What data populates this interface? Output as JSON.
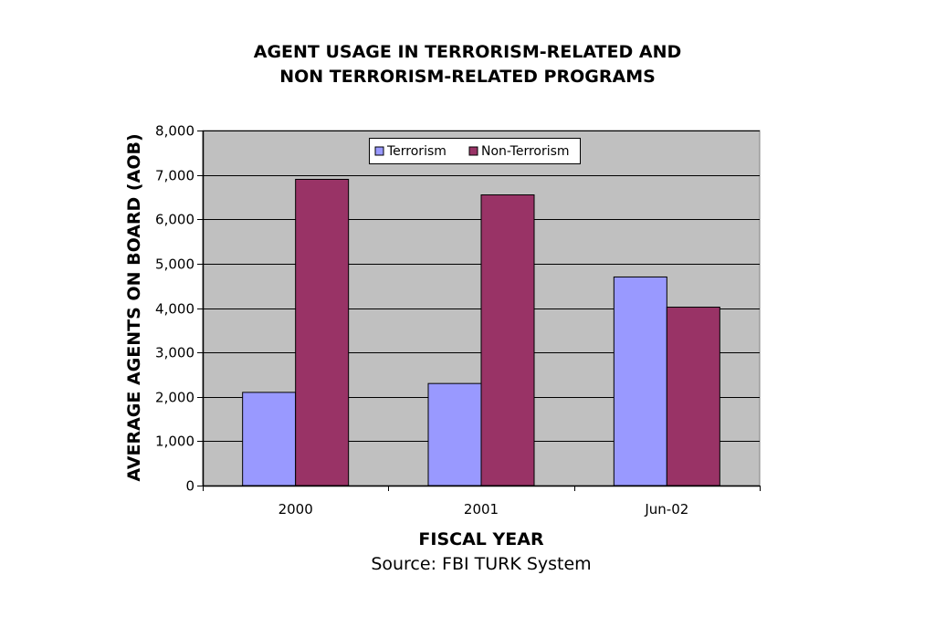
{
  "chart_data": {
    "type": "bar",
    "title_lines": [
      "AGENT USAGE IN TERRORISM-RELATED AND",
      "NON TERRORISM-RELATED PROGRAMS"
    ],
    "xlabel": "FISCAL YEAR",
    "ylabel": "AVERAGE AGENTS ON BOARD (AOB)",
    "source": "Source:  FBI TURK System",
    "categories": [
      "2000",
      "2001",
      "Jun-02"
    ],
    "series": [
      {
        "name": "Terrorism",
        "color": "#9999ff",
        "values": [
          2100,
          2300,
          4700
        ]
      },
      {
        "name": "Non-Terrorism",
        "color": "#993366",
        "values": [
          6900,
          6550,
          4020
        ]
      }
    ],
    "ylim": [
      0,
      8000
    ],
    "yticks": [
      0,
      1000,
      2000,
      3000,
      4000,
      5000,
      6000,
      7000,
      8000
    ],
    "ytick_labels": [
      "0",
      "1,000",
      "2,000",
      "3,000",
      "4,000",
      "5,000",
      "6,000",
      "7,000",
      "8,000"
    ],
    "grid": true,
    "legend_position": "top-center",
    "plot_background": "#c0c0c0"
  }
}
